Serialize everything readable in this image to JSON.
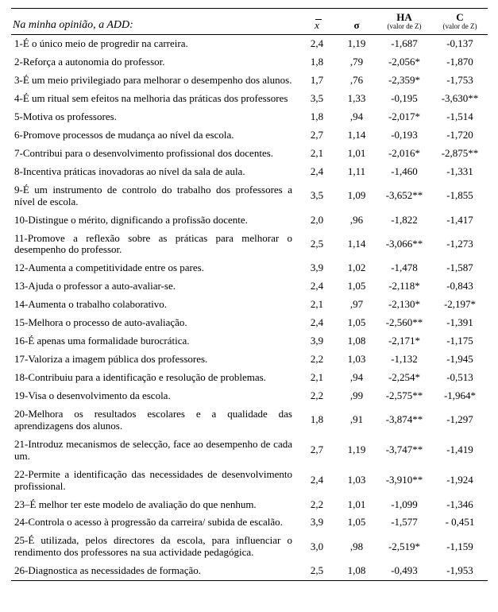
{
  "header": {
    "statement_label": "Na minha opinião, a ADD:",
    "mean_symbol": "x",
    "sigma_symbol": "σ",
    "ha_label": "HA",
    "ha_sub": "(valor de Z)",
    "c_label": "C",
    "c_sub": "(valor de Z)"
  },
  "rows": [
    {
      "stmt": "1-É o único meio de progredir na carreira.",
      "mean": "2,4",
      "sigma": "1,19",
      "ha": "-1,687",
      "c": "-0,137"
    },
    {
      "stmt": "2-Reforça a autonomia do professor.",
      "mean": "1,8",
      "sigma": ",79",
      "ha": "-2,056*",
      "c": "-1,870"
    },
    {
      "stmt": "3-É um meio privilegiado para melhorar o desempenho dos alunos.",
      "mean": "1,7",
      "sigma": ",76",
      "ha": "-2,359*",
      "c": "-1,753"
    },
    {
      "stmt": "4-É um ritual sem efeitos na melhoria das práticas dos professores",
      "mean": "3,5",
      "sigma": "1,33",
      "ha": "-0,195",
      "c": "-3,630**"
    },
    {
      "stmt": "5-Motiva os professores.",
      "mean": "1,8",
      "sigma": ",94",
      "ha": "-2,017*",
      "c": "-1,514"
    },
    {
      "stmt": "6-Promove processos de mudança ao nível da escola.",
      "mean": "2,7",
      "sigma": "1,14",
      "ha": "-0,193",
      "c": "-1,720"
    },
    {
      "stmt": "7-Contribui para o desenvolvimento profissional dos docentes.",
      "mean": "2,1",
      "sigma": "1,01",
      "ha": "-2,016*",
      "c": "-2,875**"
    },
    {
      "stmt": "8-Incentiva práticas inovadoras ao nível da sala de aula.",
      "mean": "2,4",
      "sigma": "1,11",
      "ha": "-1,460",
      "c": "-1,331"
    },
    {
      "stmt": "9-É um instrumento de controlo do trabalho dos professores a nível de escola.",
      "mean": "3,5",
      "sigma": "1,09",
      "ha": "-3,652**",
      "c": "-1,855"
    },
    {
      "stmt": "10-Distingue o mérito, dignificando a profissão docente.",
      "mean": "2,0",
      "sigma": ",96",
      "ha": "-1,822",
      "c": "-1,417"
    },
    {
      "stmt": "11-Promove a reflexão sobre as práticas para melhorar o desempenho do professor.",
      "mean": "2,5",
      "sigma": "1,14",
      "ha": "-3,066**",
      "c": "-1,273"
    },
    {
      "stmt": "12-Aumenta a competitividade entre os pares.",
      "mean": "3,9",
      "sigma": "1,02",
      "ha": "-1,478",
      "c": "-1,587"
    },
    {
      "stmt": "13-Ajuda o professor a auto-avaliar-se.",
      "mean": "2,4",
      "sigma": "1,05",
      "ha": "-2,118*",
      "c": "-0,843"
    },
    {
      "stmt": "14-Aumenta o trabalho colaborativo.",
      "mean": "2,1",
      "sigma": ",97",
      "ha": "-2,130*",
      "c": "-2,197*"
    },
    {
      "stmt": "15-Melhora o processo de auto-avaliação.",
      "mean": "2,4",
      "sigma": "1,05",
      "ha": "-2,560**",
      "c": "-1,391"
    },
    {
      "stmt": "16-É apenas uma formalidade burocrática.",
      "mean": "3,9",
      "sigma": "1,08",
      "ha": "-2,171*",
      "c": "-1,175"
    },
    {
      "stmt": "17-Valoriza a imagem pública dos professores.",
      "mean": "2,2",
      "sigma": "1,03",
      "ha": "-1,132",
      "c": "-1,945"
    },
    {
      "stmt": "18-Contribuiu para a identificação e resolução de problemas.",
      "mean": "2,1",
      "sigma": ",94",
      "ha": "-2,254*",
      "c": "-0,513"
    },
    {
      "stmt": "19-Visa o desenvolvimento da escola.",
      "mean": "2,2",
      "sigma": ",99",
      "ha": "-2,575**",
      "c": "-1,964*"
    },
    {
      "stmt": "20-Melhora os resultados escolares e a qualidade das aprendizagens dos alunos.",
      "mean": "1,8",
      "sigma": ",91",
      "ha": "-3,874**",
      "c": "-1,297"
    },
    {
      "stmt": "21-Introduz mecanismos de selecção, face ao desempenho de cada um.",
      "mean": "2,7",
      "sigma": "1,19",
      "ha": "-3,747**",
      "c": "-1,419"
    },
    {
      "stmt": "22-Permite a identificação das necessidades de desenvolvimento profissional.",
      "mean": "2,4",
      "sigma": "1,03",
      "ha": "-3,910**",
      "c": "-1,924"
    },
    {
      "stmt": "23–É melhor ter este modelo de avaliação do que nenhum.",
      "mean": "2,2",
      "sigma": "1,01",
      "ha": "-1,099",
      "c": "-1,346"
    },
    {
      "stmt": "24-Controla o acesso à progressão da carreira/ subida de escalão.",
      "mean": "3,9",
      "sigma": "1,05",
      "ha": "-1,577",
      "c": "- 0,451"
    },
    {
      "stmt": "25-É utilizada, pelos directores da escola, para influenciar o rendimento dos professores na sua actividade pedagógica.",
      "mean": "3,0",
      "sigma": ",98",
      "ha": "-2,519*",
      "c": "-1,159"
    },
    {
      "stmt": "26-Diagnostica as necessidades de formação.",
      "mean": "2,5",
      "sigma": "1,08",
      "ha": "-0,493",
      "c": "-1,953"
    }
  ]
}
